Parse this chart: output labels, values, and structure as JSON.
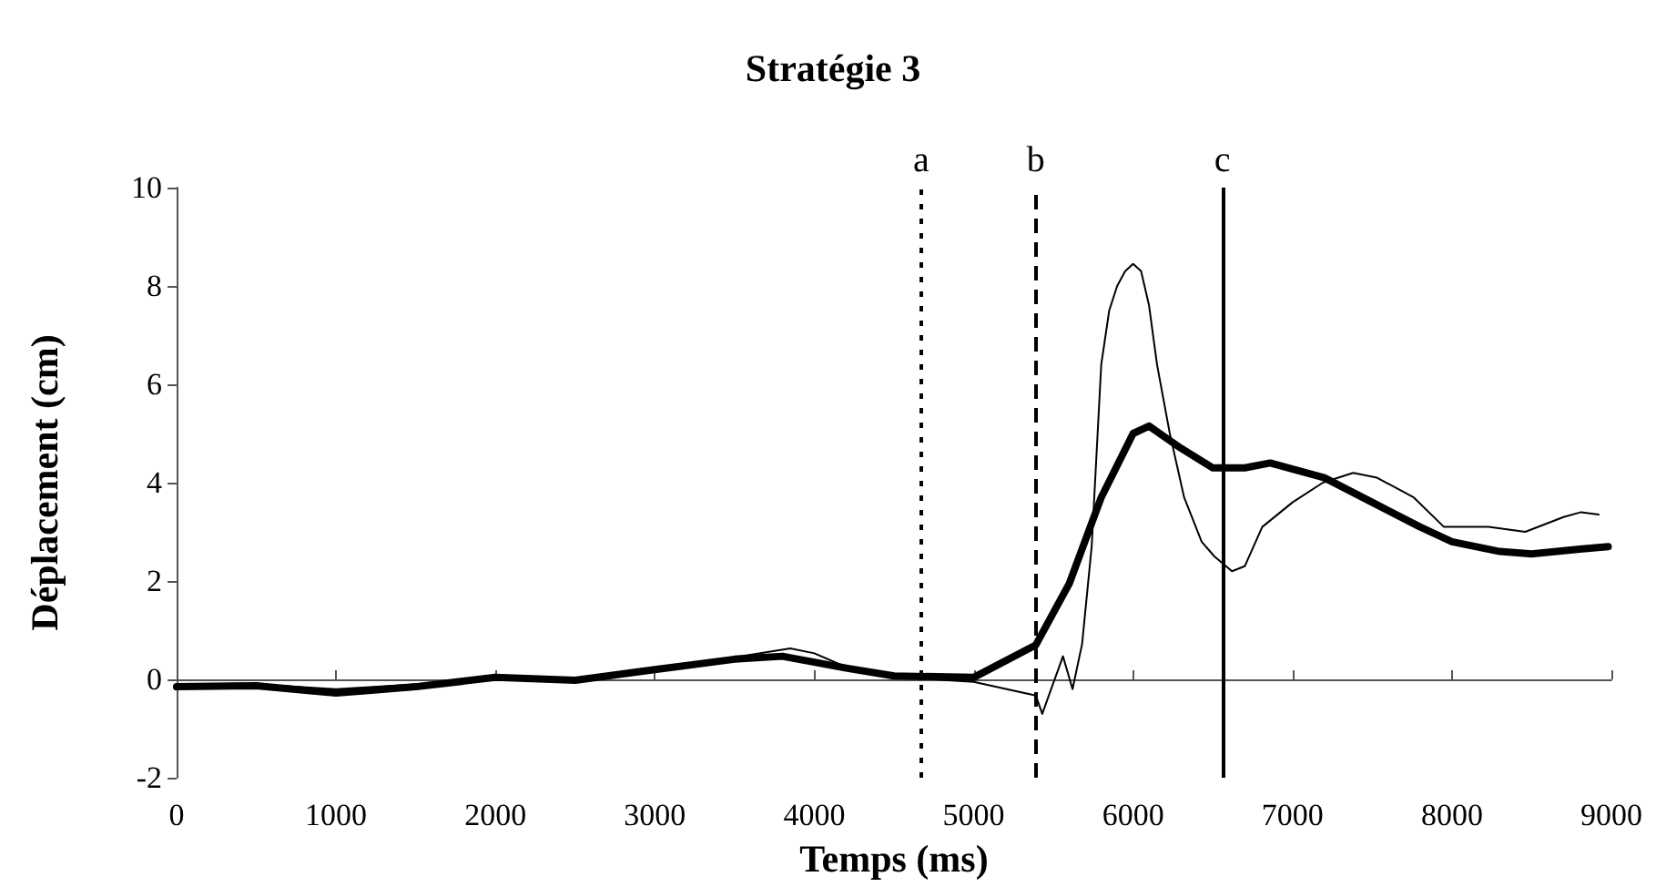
{
  "chart_data": {
    "type": "line",
    "title": "Stratégie 3",
    "xlabel": "Temps (ms)",
    "ylabel": "Déplacement (cm)",
    "xlim": [
      0,
      9000
    ],
    "xticks": [
      0,
      1000,
      2000,
      3000,
      4000,
      5000,
      6000,
      7000,
      8000,
      9000
    ],
    "ylim": [
      -2,
      10
    ],
    "yticks": [
      -2,
      0,
      2,
      4,
      6,
      8,
      10
    ],
    "marker": "none",
    "series": [
      {
        "color": "#000000",
        "line_style": "solid",
        "x": [
          0,
          500,
          1000,
          1500,
          2000,
          2500,
          3000,
          3500,
          3850,
          4000,
          4200,
          4500,
          5000,
          5390,
          5430,
          5560,
          5620,
          5680,
          5740,
          5800,
          5850,
          5900,
          5950,
          6000,
          6050,
          6100,
          6150,
          6230,
          6320,
          6430,
          6510,
          6620,
          6700,
          6810,
          7000,
          7190,
          7380,
          7530,
          7760,
          7950,
          8140,
          8230,
          8460,
          8700,
          8810,
          8920
        ],
        "values": [
          -0.1,
          -0.1,
          -0.2,
          -0.1,
          0.05,
          0,
          0.2,
          0.45,
          0.63,
          0.53,
          0.25,
          0.05,
          -0.05,
          -0.33,
          -0.7,
          0.47,
          -0.2,
          0.72,
          2.7,
          6.4,
          7.5,
          8.0,
          8.3,
          8.45,
          8.3,
          7.6,
          6.4,
          5.0,
          3.7,
          2.8,
          2.5,
          2.2,
          2.3,
          3.1,
          3.6,
          4.0,
          4.2,
          4.1,
          3.7,
          3.1,
          3.1,
          3.1,
          3.0,
          3.3,
          3.4,
          3.35
        ]
      },
      {
        "color": "#000000",
        "line_style": "solid",
        "x": [
          0,
          500,
          1000,
          1500,
          2000,
          2500,
          3000,
          3500,
          3800,
          4200,
          4500,
          5000,
          5390,
          5600,
          5800,
          6000,
          6100,
          6300,
          6500,
          6700,
          6860,
          7200,
          7500,
          7800,
          8000,
          8300,
          8500,
          8800,
          8980
        ],
        "values": [
          -0.15,
          -0.13,
          -0.28,
          -0.15,
          0.04,
          -0.02,
          0.2,
          0.41,
          0.47,
          0.23,
          0.07,
          0.04,
          0.7,
          1.95,
          3.7,
          5.0,
          5.15,
          4.7,
          4.3,
          4.3,
          4.4,
          4.1,
          3.6,
          3.1,
          2.8,
          2.6,
          2.55,
          2.65,
          2.7
        ]
      }
    ],
    "ref_lines": [
      {
        "axis": "x",
        "value": 4670,
        "label": "a",
        "line_style": "dotted",
        "color": "#000000"
      },
      {
        "axis": "x",
        "value": 5390,
        "label": "b",
        "line_style": "dashed",
        "color": "#000000"
      },
      {
        "axis": "x",
        "value": 6560,
        "label": "c",
        "line_style": "solid",
        "color": "#000000"
      }
    ]
  }
}
